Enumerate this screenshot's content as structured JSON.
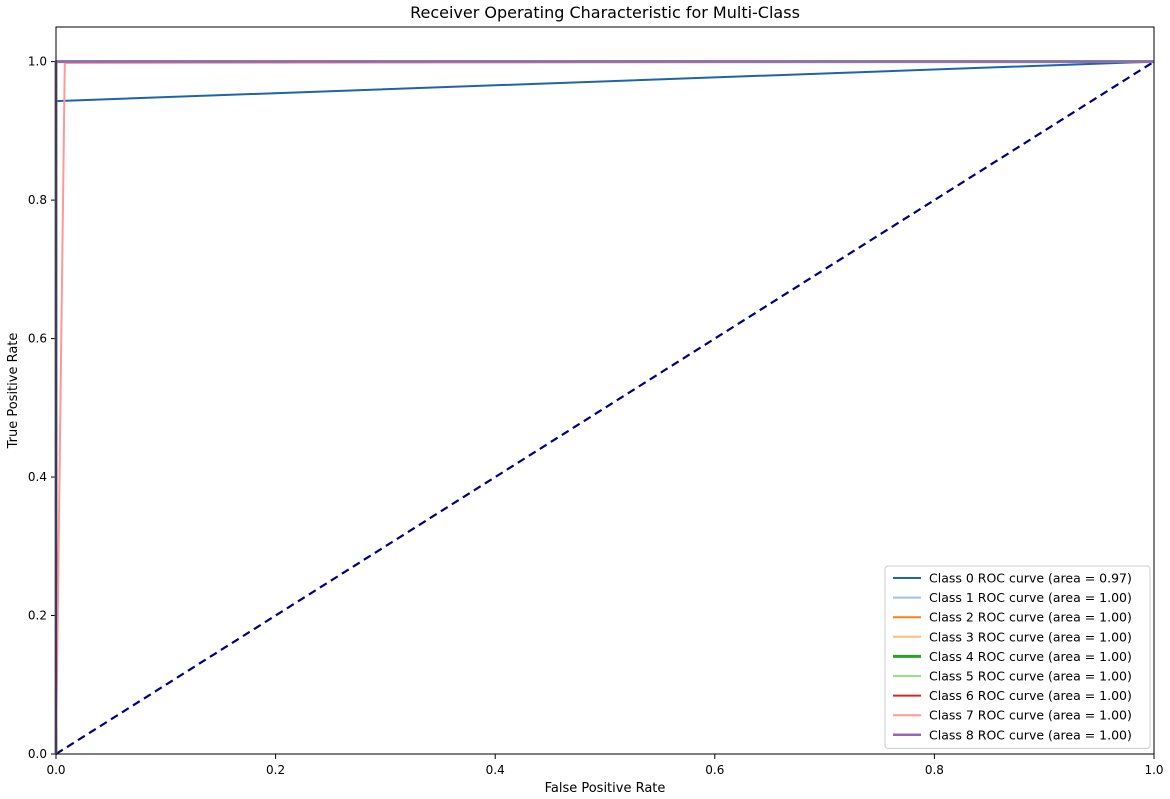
{
  "chart_data": {
    "type": "line",
    "title": "Receiver Operating Characteristic for Multi-Class",
    "xlabel": "False Positive Rate",
    "ylabel": "True Positive Rate",
    "xlim": [
      0.0,
      1.0
    ],
    "ylim": [
      0.0,
      1.05
    ],
    "xticks": [
      0.0,
      0.2,
      0.4,
      0.6,
      0.8,
      1.0
    ],
    "xtick_labels": [
      "0.0",
      "0.2",
      "0.4",
      "0.6",
      "0.8",
      "1.0"
    ],
    "yticks": [
      0.0,
      0.2,
      0.4,
      0.6,
      0.8,
      1.0
    ],
    "ytick_labels": [
      "0.0",
      "0.2",
      "0.4",
      "0.6",
      "0.8",
      "1.0"
    ],
    "grid": false,
    "legend_position": "lower-right",
    "series": [
      {
        "name": "Class 0 ROC curve (area = 0.97)",
        "color": "#1f63a8",
        "width": 2,
        "points": [
          [
            0,
            0
          ],
          [
            0,
            0.943
          ],
          [
            1,
            1
          ]
        ]
      },
      {
        "name": "Class 1 ROC curve (area = 1.00)",
        "color": "#9ec3e0",
        "width": 2,
        "points": [
          [
            0,
            0
          ],
          [
            0,
            1
          ],
          [
            1,
            1
          ]
        ]
      },
      {
        "name": "Class 2 ROC curve (area = 1.00)",
        "color": "#ff7f0e",
        "width": 2,
        "points": [
          [
            0,
            0
          ],
          [
            0,
            1
          ],
          [
            1,
            1
          ]
        ]
      },
      {
        "name": "Class 3 ROC curve (area = 1.00)",
        "color": "#ffbb78",
        "width": 2,
        "points": [
          [
            0,
            0
          ],
          [
            0,
            1
          ],
          [
            1,
            1
          ]
        ]
      },
      {
        "name": "Class 4 ROC curve (area = 1.00)",
        "color": "#2ca02c",
        "width": 3,
        "points": [
          [
            0,
            0
          ],
          [
            0,
            1
          ],
          [
            1,
            1
          ]
        ]
      },
      {
        "name": "Class 5 ROC curve (area = 1.00)",
        "color": "#98df8a",
        "width": 2,
        "points": [
          [
            0,
            0
          ],
          [
            0,
            1
          ],
          [
            1,
            1
          ]
        ]
      },
      {
        "name": "Class 6 ROC curve (area = 1.00)",
        "color": "#d62728",
        "width": 2,
        "points": [
          [
            0,
            0
          ],
          [
            0,
            1
          ],
          [
            1,
            1
          ]
        ]
      },
      {
        "name": "Class 7 ROC curve (area = 1.00)",
        "color": "#ff9896",
        "width": 2,
        "points": [
          [
            0,
            0
          ],
          [
            0.008,
            0.998
          ],
          [
            1,
            1
          ]
        ]
      },
      {
        "name": "Class 8 ROC curve (area = 1.00)",
        "color": "#9467bd",
        "width": 2.5,
        "points": [
          [
            0,
            0
          ],
          [
            0,
            1
          ],
          [
            1,
            1
          ]
        ]
      }
    ],
    "reference_line": {
      "color": "#000080",
      "style": "dashed",
      "points": [
        [
          0,
          0
        ],
        [
          1,
          1
        ]
      ]
    }
  }
}
